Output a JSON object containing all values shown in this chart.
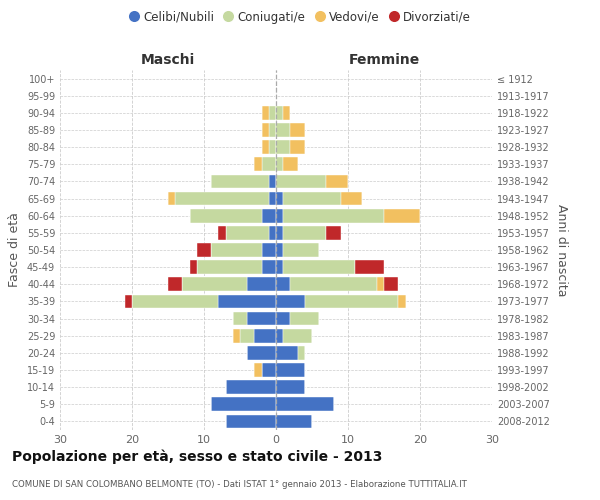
{
  "age_groups": [
    "0-4",
    "5-9",
    "10-14",
    "15-19",
    "20-24",
    "25-29",
    "30-34",
    "35-39",
    "40-44",
    "45-49",
    "50-54",
    "55-59",
    "60-64",
    "65-69",
    "70-74",
    "75-79",
    "80-84",
    "85-89",
    "90-94",
    "95-99",
    "100+"
  ],
  "birth_years": [
    "2008-2012",
    "2003-2007",
    "1998-2002",
    "1993-1997",
    "1988-1992",
    "1983-1987",
    "1978-1982",
    "1973-1977",
    "1968-1972",
    "1963-1967",
    "1958-1962",
    "1953-1957",
    "1948-1952",
    "1943-1947",
    "1938-1942",
    "1933-1937",
    "1928-1932",
    "1923-1927",
    "1918-1922",
    "1913-1917",
    "≤ 1912"
  ],
  "maschi": {
    "celibe": [
      7,
      9,
      7,
      2,
      4,
      3,
      4,
      8,
      4,
      2,
      2,
      1,
      2,
      1,
      1,
      0,
      0,
      0,
      0,
      0,
      0
    ],
    "coniugato": [
      0,
      0,
      0,
      0,
      0,
      2,
      2,
      12,
      9,
      9,
      7,
      6,
      10,
      13,
      8,
      2,
      1,
      1,
      1,
      0,
      0
    ],
    "vedovo": [
      0,
      0,
      0,
      1,
      0,
      1,
      0,
      0,
      0,
      0,
      0,
      0,
      0,
      1,
      0,
      1,
      1,
      1,
      1,
      0,
      0
    ],
    "divorziato": [
      0,
      0,
      0,
      0,
      0,
      0,
      0,
      1,
      2,
      1,
      2,
      1,
      0,
      0,
      0,
      0,
      0,
      0,
      0,
      0,
      0
    ]
  },
  "femmine": {
    "nubile": [
      5,
      8,
      4,
      4,
      3,
      1,
      2,
      4,
      2,
      1,
      1,
      1,
      1,
      1,
      0,
      0,
      0,
      0,
      0,
      0,
      0
    ],
    "coniugata": [
      0,
      0,
      0,
      0,
      1,
      4,
      4,
      13,
      12,
      10,
      5,
      6,
      14,
      8,
      7,
      1,
      2,
      2,
      1,
      0,
      0
    ],
    "vedova": [
      0,
      0,
      0,
      0,
      0,
      0,
      0,
      1,
      1,
      0,
      0,
      0,
      5,
      3,
      3,
      2,
      2,
      2,
      1,
      0,
      0
    ],
    "divorziata": [
      0,
      0,
      0,
      0,
      0,
      0,
      0,
      0,
      2,
      4,
      0,
      2,
      0,
      0,
      0,
      0,
      0,
      0,
      0,
      0,
      0
    ]
  },
  "colors": {
    "celibe": "#4472C4",
    "coniugato": "#C5D9A0",
    "vedovo": "#F2C060",
    "divorziato": "#C0282A"
  },
  "xlim": 30,
  "title": "Popolazione per età, sesso e stato civile - 2013",
  "subtitle": "COMUNE DI SAN COLOMBANO BELMONTE (TO) - Dati ISTAT 1° gennaio 2013 - Elaborazione TUTTITALIA.IT",
  "ylabel_left": "Fasce di età",
  "ylabel_right": "Anni di nascita",
  "legend_labels": [
    "Celibi/Nubili",
    "Coniugati/e",
    "Vedovi/e",
    "Divorziati/e"
  ]
}
